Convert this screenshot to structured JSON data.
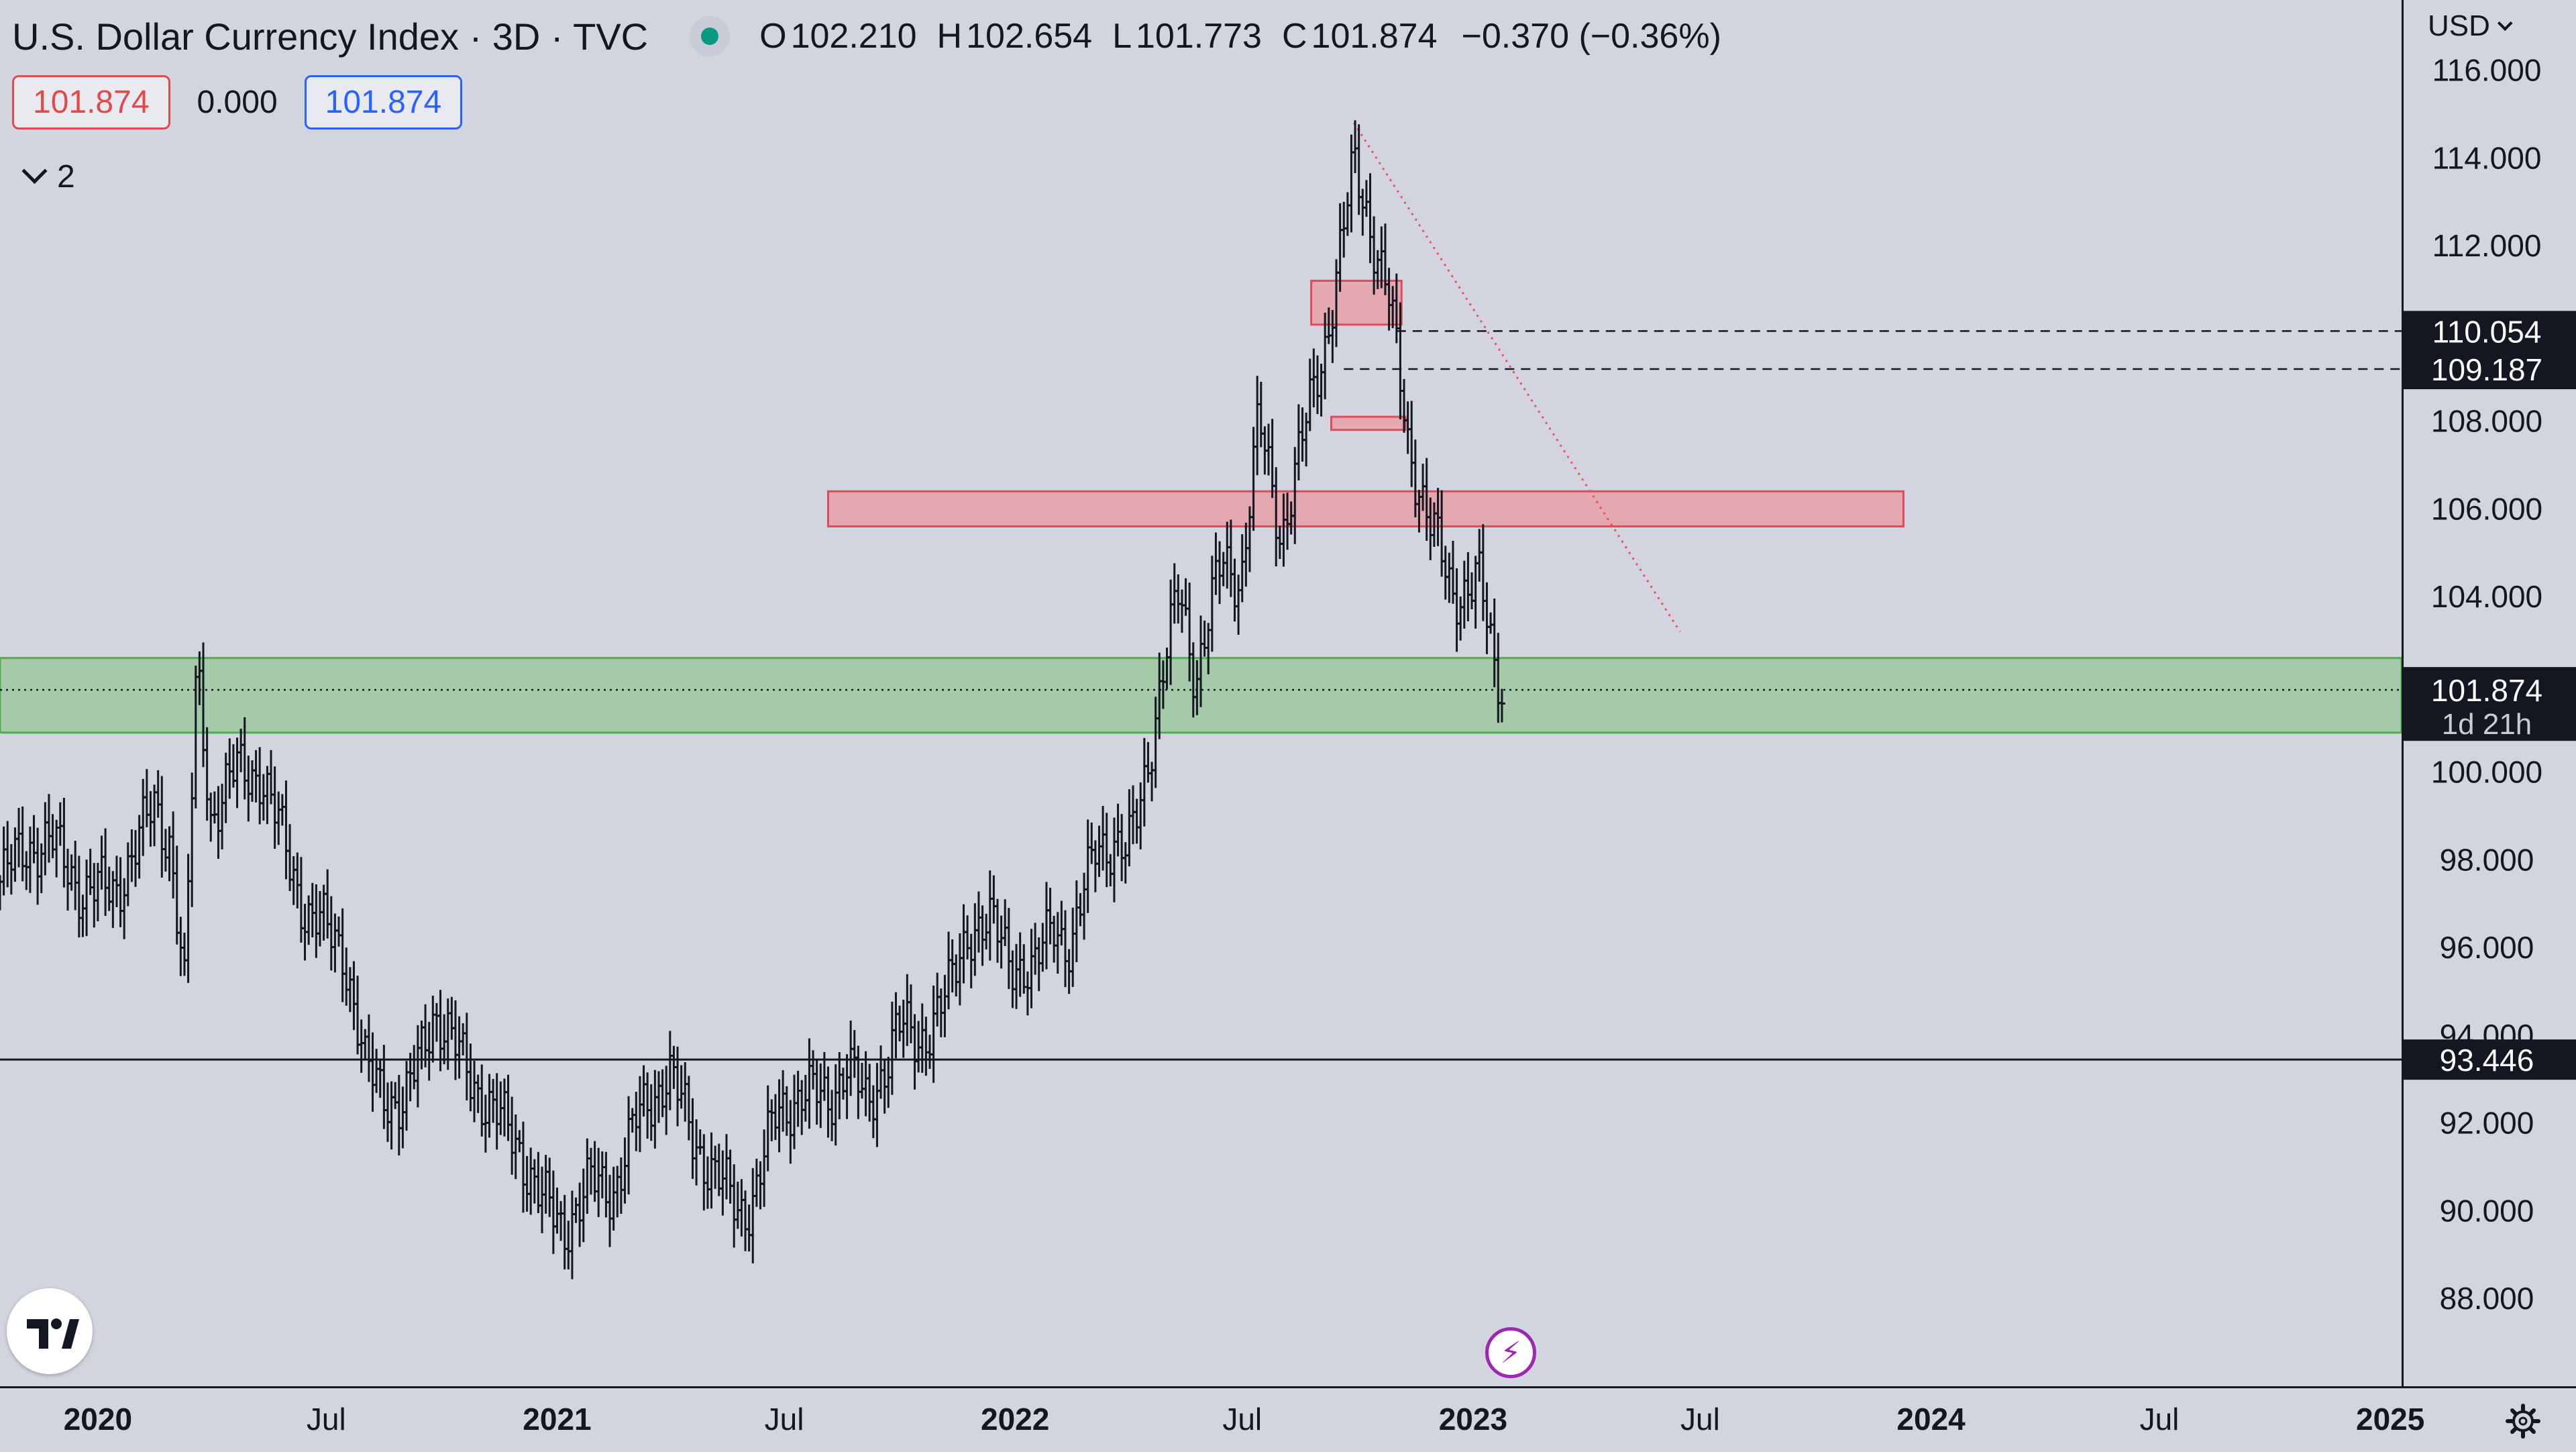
{
  "header": {
    "title": "U.S. Dollar Currency Index · 3D · TVC",
    "ohlc": {
      "o_label": "O",
      "o": "102.210",
      "h_label": "H",
      "h": "102.654",
      "l_label": "L",
      "l": "101.773",
      "c_label": "C",
      "c": "101.874",
      "change": "−0.370 (−0.36%)"
    }
  },
  "order_boxes": {
    "sell": "101.874",
    "spread": "0.000",
    "buy": "101.874"
  },
  "indicators_toggle": {
    "count": "2"
  },
  "price_axis": {
    "currency": "USD"
  },
  "colors": {
    "background": "#d2d5df",
    "supply_zone": "#e8a0a8",
    "demand_zone": "#a6c9a9",
    "trendline": "#f05050",
    "axis": "#131722"
  },
  "icons": {
    "logo": "tradingview-logo-icon",
    "flash": "flash-icon",
    "settings": "gear-icon",
    "currency_dropdown": "chevron-down-icon"
  },
  "chart_data": {
    "type": "bar",
    "title": "U.S. Dollar Currency Index · 3D · TVC",
    "x_range": [
      "2019-10-15",
      "2025-01-10"
    ],
    "y_range": [
      86.0,
      117.6
    ],
    "y_ticks": [
      "116.000",
      "114.000",
      "112.000",
      "110.000",
      "108.000",
      "106.000",
      "104.000",
      "102.000",
      "100.000",
      "98.000",
      "96.000",
      "94.000",
      "92.000",
      "90.000",
      "88.000"
    ],
    "x_ticks": [
      {
        "date": "2020-01-01",
        "label": "2020",
        "bold": true
      },
      {
        "date": "2020-07-01",
        "label": "Jul",
        "bold": false
      },
      {
        "date": "2021-01-01",
        "label": "2021",
        "bold": true
      },
      {
        "date": "2021-07-01",
        "label": "Jul",
        "bold": false
      },
      {
        "date": "2022-01-01",
        "label": "2022",
        "bold": true
      },
      {
        "date": "2022-07-01",
        "label": "Jul",
        "bold": false
      },
      {
        "date": "2023-01-01",
        "label": "2023",
        "bold": true
      },
      {
        "date": "2023-07-01",
        "label": "Jul",
        "bold": false
      },
      {
        "date": "2024-01-01",
        "label": "2024",
        "bold": true
      },
      {
        "date": "2024-07-01",
        "label": "Jul",
        "bold": false
      },
      {
        "date": "2025-01-01",
        "label": "2025",
        "bold": true
      }
    ],
    "price_series": [
      [
        "2019-10-15",
        97.5
      ],
      [
        "2019-11-05",
        98.3
      ],
      [
        "2019-11-25",
        98.4
      ],
      [
        "2019-12-20",
        97.3
      ],
      [
        "2020-01-15",
        97.3
      ],
      [
        "2020-02-15",
        99.2
      ],
      [
        "2020-02-28",
        98.4
      ],
      [
        "2020-03-10",
        95.0
      ],
      [
        "2020-03-20",
        102.5
      ],
      [
        "2020-03-31",
        99.0
      ],
      [
        "2020-04-20",
        100.0
      ],
      [
        "2020-05-10",
        100.0
      ],
      [
        "2020-05-31",
        98.1
      ],
      [
        "2020-06-15",
        96.8
      ],
      [
        "2020-07-15",
        96.0
      ],
      [
        "2020-08-01",
        93.2
      ],
      [
        "2020-09-01",
        92.3
      ],
      [
        "2020-09-25",
        94.6
      ],
      [
        "2020-10-15",
        93.5
      ],
      [
        "2020-11-05",
        92.5
      ],
      [
        "2020-12-01",
        91.5
      ],
      [
        "2020-12-20",
        90.2
      ],
      [
        "2021-01-06",
        89.6
      ],
      [
        "2021-01-28",
        90.6
      ],
      [
        "2021-02-15",
        90.5
      ],
      [
        "2021-03-05",
        92.0
      ],
      [
        "2021-03-31",
        93.2
      ],
      [
        "2021-04-20",
        91.6
      ],
      [
        "2021-05-25",
        90.0
      ],
      [
        "2021-06-05",
        90.2
      ],
      [
        "2021-06-25",
        92.2
      ],
      [
        "2021-07-15",
        92.7
      ],
      [
        "2021-08-05",
        92.5
      ],
      [
        "2021-08-20",
        93.4
      ],
      [
        "2021-09-05",
        92.3
      ],
      [
        "2021-09-30",
        94.2
      ],
      [
        "2021-10-15",
        93.8
      ],
      [
        "2021-11-10",
        95.0
      ],
      [
        "2021-11-25",
        96.5
      ],
      [
        "2021-12-15",
        96.4
      ],
      [
        "2022-01-15",
        95.2
      ],
      [
        "2022-01-31",
        96.8
      ],
      [
        "2022-02-15",
        95.8
      ],
      [
        "2022-03-07",
        98.6
      ],
      [
        "2022-03-31",
        98.0
      ],
      [
        "2022-04-20",
        100.8
      ],
      [
        "2022-05-12",
        104.2
      ],
      [
        "2022-05-25",
        102.2
      ],
      [
        "2022-06-15",
        104.8
      ],
      [
        "2022-06-30",
        104.4
      ],
      [
        "2022-07-14",
        108.0
      ],
      [
        "2022-08-01",
        105.4
      ],
      [
        "2022-08-20",
        107.8
      ],
      [
        "2022-09-05",
        109.8
      ],
      [
        "2022-09-28",
        113.8
      ],
      [
        "2022-10-10",
        112.6
      ],
      [
        "2022-10-25",
        111.0
      ],
      [
        "2022-11-10",
        107.5
      ],
      [
        "2022-11-25",
        106.0
      ],
      [
        "2022-12-15",
        104.0
      ],
      [
        "2023-01-05",
        104.5
      ],
      [
        "2023-01-18",
        102.3
      ],
      [
        "2023-01-26",
        101.874
      ]
    ],
    "support_zone": {
      "y_low": 100.9,
      "y_high": 102.6,
      "x_start": "2019-10-15",
      "x_end": "2025-01-10"
    },
    "supply_zones": [
      {
        "y_low": 106.4,
        "y_high": 105.6,
        "x_start": "2021-08-05",
        "x_end": "2023-12-10"
      },
      {
        "y_low": 111.2,
        "y_high": 110.2,
        "x_start": "2022-08-25",
        "x_end": "2022-11-05"
      },
      {
        "y_low": 108.1,
        "y_high": 107.8,
        "x_start": "2022-09-10",
        "x_end": "2022-11-08"
      }
    ],
    "trendline": {
      "x1": "2022-09-28",
      "y1": 114.8,
      "x2": "2023-06-15",
      "y2": 103.2
    },
    "horizontal_lines": [
      {
        "value": 110.054,
        "label": "110.054",
        "style": "dashed",
        "x_start": "2022-11-01"
      },
      {
        "value": 109.187,
        "label": "109.187",
        "style": "dashed",
        "x_start": "2022-09-20"
      },
      {
        "value": 93.446,
        "label": "93.446",
        "style": "solid",
        "x_start": "2019-10-15"
      },
      {
        "value": 101.874,
        "label": "101.874",
        "style": "dotted",
        "x_start": "2019-10-15"
      }
    ],
    "last_price": {
      "value": 101.874,
      "label": "101.874",
      "countdown": "1d 21h"
    }
  }
}
